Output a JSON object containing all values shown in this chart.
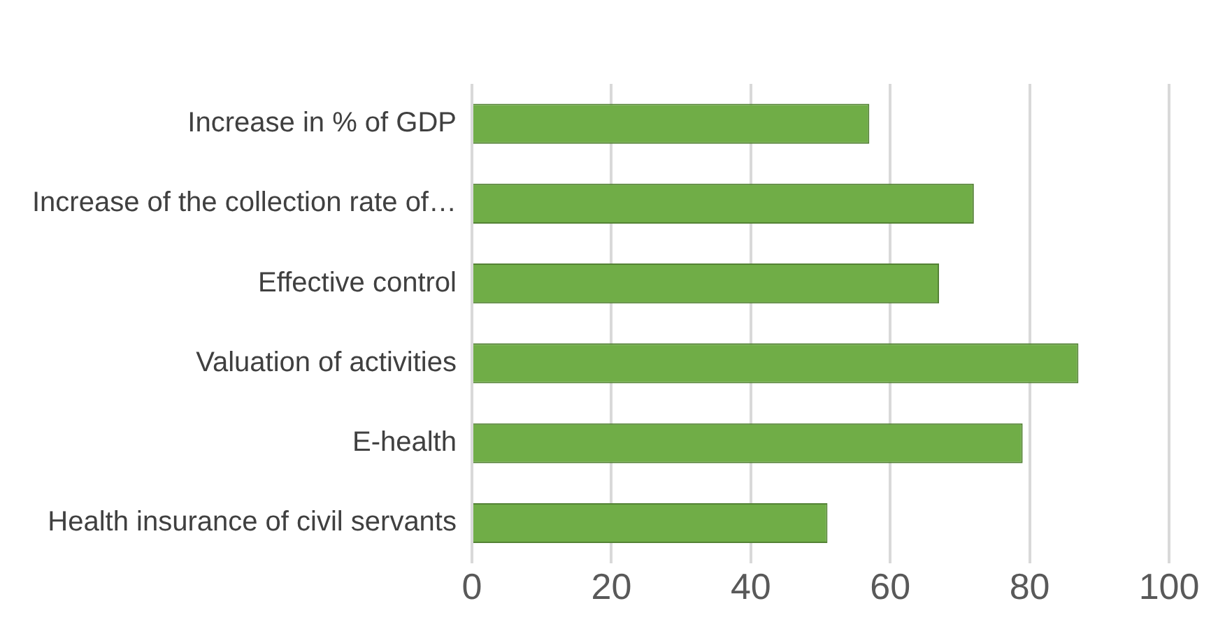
{
  "chart_data": {
    "type": "bar",
    "orientation": "horizontal",
    "categories": [
      "Increase in % of GDP",
      "Increase of the collection rate of…",
      "Effective control",
      "Valuation of activities",
      "E-health",
      "Health insurance of civil servants"
    ],
    "values": [
      57,
      72,
      67,
      87,
      79,
      51
    ],
    "color": "#70ad47",
    "xlim": [
      0,
      100
    ],
    "xticks": [
      0,
      20,
      40,
      60,
      80,
      100
    ],
    "grid": "x",
    "legend": false
  }
}
